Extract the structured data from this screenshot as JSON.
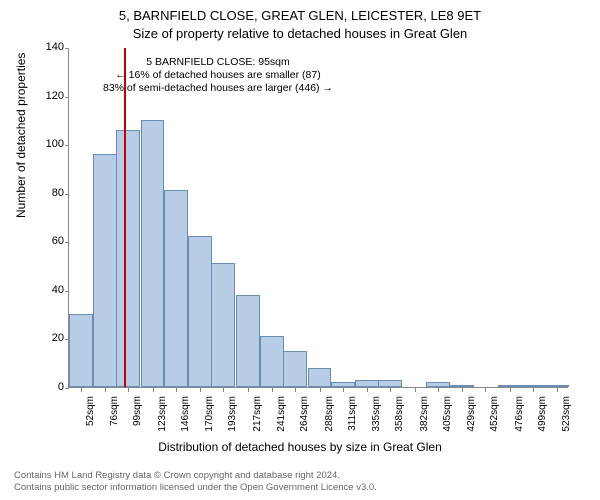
{
  "title": "5, BARNFIELD CLOSE, GREAT GLEN, LEICESTER, LE8 9ET",
  "subtitle": "Size of property relative to detached houses in Great Glen",
  "chart": {
    "type": "histogram",
    "ylabel": "Number of detached properties",
    "xlabel": "Distribution of detached houses by size in Great Glen",
    "ylim": [
      0,
      140
    ],
    "ytick_step": 20,
    "yticks": [
      0,
      20,
      40,
      60,
      80,
      100,
      120,
      140
    ],
    "xticks": [
      "52sqm",
      "76sqm",
      "99sqm",
      "123sqm",
      "146sqm",
      "170sqm",
      "193sqm",
      "217sqm",
      "241sqm",
      "264sqm",
      "288sqm",
      "311sqm",
      "335sqm",
      "358sqm",
      "382sqm",
      "405sqm",
      "429sqm",
      "452sqm",
      "476sqm",
      "499sqm",
      "523sqm"
    ],
    "bar_color": "#b7cce5",
    "bar_border": "#6a8db5",
    "marker_color": "#c00000",
    "marker_x_value": 95,
    "x_min": 40.5,
    "x_max": 534.5,
    "bars": [
      {
        "x": 52,
        "h": 30
      },
      {
        "x": 76,
        "h": 96
      },
      {
        "x": 99,
        "h": 106
      },
      {
        "x": 123,
        "h": 110
      },
      {
        "x": 146,
        "h": 81
      },
      {
        "x": 170,
        "h": 62
      },
      {
        "x": 193,
        "h": 51
      },
      {
        "x": 217,
        "h": 38
      },
      {
        "x": 241,
        "h": 21
      },
      {
        "x": 264,
        "h": 15
      },
      {
        "x": 288,
        "h": 8
      },
      {
        "x": 311,
        "h": 2
      },
      {
        "x": 335,
        "h": 3
      },
      {
        "x": 358,
        "h": 3
      },
      {
        "x": 382,
        "h": 0
      },
      {
        "x": 405,
        "h": 2
      },
      {
        "x": 429,
        "h": 1
      },
      {
        "x": 452,
        "h": 0
      },
      {
        "x": 476,
        "h": 1
      },
      {
        "x": 499,
        "h": 1
      },
      {
        "x": 523,
        "h": 1
      }
    ],
    "annotation": {
      "l1": "5 BARNFIELD CLOSE: 95sqm",
      "l2": "← 16% of detached houses are smaller (87)",
      "l3": "83% of semi-detached houses are larger (446) →"
    }
  },
  "footer": {
    "l1": "Contains HM Land Registry data © Crown copyright and database right 2024.",
    "l2": "Contains public sector information licensed under the Open Government Licence v3.0."
  }
}
